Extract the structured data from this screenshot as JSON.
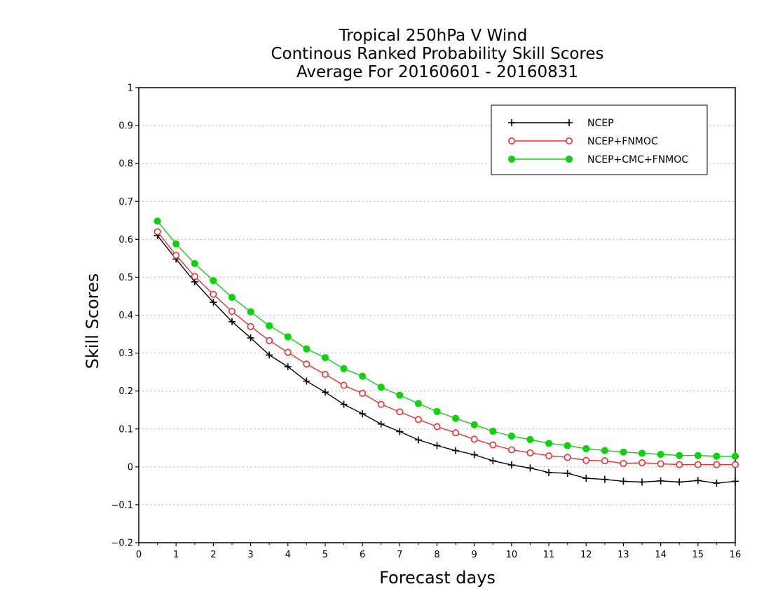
{
  "chart_data": {
    "type": "line",
    "title": [
      "Tropical 250hPa V Wind",
      "Continous Ranked Probability Skill Scores",
      "Average For 20160601 - 20160831"
    ],
    "xlabel": "Forecast days",
    "ylabel": "Skill Scores",
    "xlim": [
      0,
      16
    ],
    "ylim": [
      -0.2,
      1
    ],
    "xticks": [
      "0",
      "1",
      "2",
      "3",
      "4",
      "5",
      "6",
      "7",
      "8",
      "9",
      "10",
      "11",
      "12",
      "13",
      "14",
      "15",
      "16"
    ],
    "yticks": [
      "−0.2",
      "−0.1",
      "0",
      "0.1",
      "0.2",
      "0.3",
      "0.4",
      "0.5",
      "0.6",
      "0.7",
      "0.8",
      "0.9",
      "1"
    ],
    "grid": "horizontal dotted",
    "legend_position": "top-right",
    "x": [
      0.5,
      1,
      1.5,
      2,
      2.5,
      3,
      3.5,
      4,
      4.5,
      5,
      5.5,
      6,
      6.5,
      7,
      7.5,
      8,
      8.5,
      9,
      9.5,
      10,
      10.5,
      11,
      11.5,
      12,
      12.5,
      13,
      13.5,
      14,
      14.5,
      15,
      15.5,
      16
    ],
    "series": [
      {
        "name": "NCEP",
        "color": "#000000",
        "marker": "plus",
        "values": [
          0.61,
          0.548,
          0.488,
          0.434,
          0.383,
          0.34,
          0.295,
          0.264,
          0.226,
          0.197,
          0.165,
          0.14,
          0.113,
          0.093,
          0.071,
          0.056,
          0.043,
          0.032,
          0.016,
          0.005,
          -0.003,
          -0.015,
          -0.017,
          -0.03,
          -0.033,
          -0.038,
          -0.04,
          -0.037,
          -0.04,
          -0.036,
          -0.043,
          -0.038
        ]
      },
      {
        "name": "NCEP+FNMOC",
        "color": "#e83030",
        "marker": "open-circle",
        "values": [
          0.62,
          0.558,
          0.502,
          0.455,
          0.41,
          0.37,
          0.333,
          0.302,
          0.271,
          0.244,
          0.215,
          0.194,
          0.165,
          0.145,
          0.125,
          0.106,
          0.09,
          0.073,
          0.058,
          0.045,
          0.037,
          0.029,
          0.025,
          0.017,
          0.016,
          0.009,
          0.011,
          0.008,
          0.006,
          0.006,
          0.006,
          0.006
        ]
      },
      {
        "name": "NCEP+CMC+FNMOC",
        "color": "#10d010",
        "marker": "filled-circle",
        "values": [
          0.648,
          0.588,
          0.536,
          0.491,
          0.447,
          0.409,
          0.372,
          0.343,
          0.311,
          0.288,
          0.259,
          0.239,
          0.21,
          0.189,
          0.167,
          0.146,
          0.128,
          0.111,
          0.094,
          0.081,
          0.072,
          0.062,
          0.056,
          0.048,
          0.043,
          0.039,
          0.036,
          0.033,
          0.03,
          0.03,
          0.028,
          0.028
        ]
      }
    ]
  }
}
